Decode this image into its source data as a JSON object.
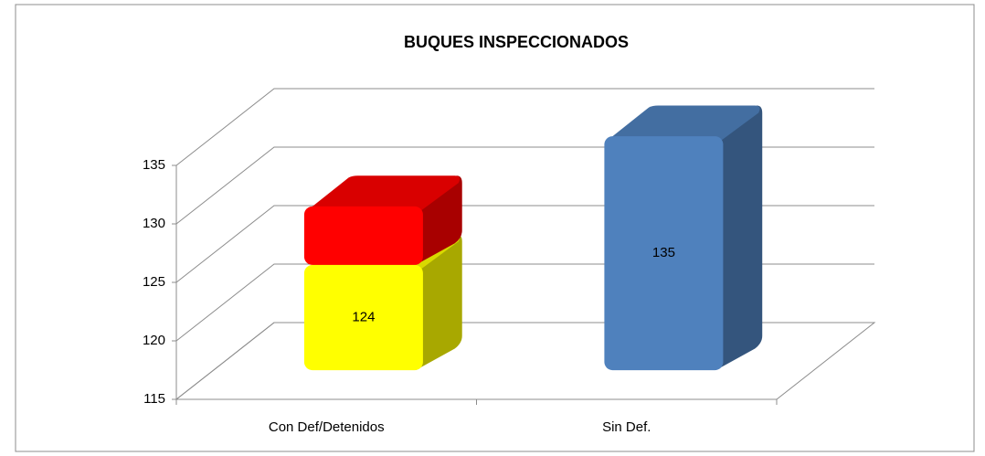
{
  "chart_data": {
    "type": "bar3d_stacked",
    "title": "BUQUES INSPECCIONADOS",
    "categories": [
      "Con Def/Detenidos",
      "Sin Def."
    ],
    "series": [
      {
        "color": "#ffff00",
        "values": [
          124,
          null
        ]
      },
      {
        "color": "#ff0000",
        "values": [
          5,
          null
        ]
      },
      {
        "color": "#4f81bd",
        "values": [
          null,
          135
        ]
      }
    ],
    "value_labels_shown": [
      true,
      false,
      true
    ],
    "ylim": [
      115,
      135
    ],
    "yticks": [
      115,
      120,
      125,
      130,
      135
    ],
    "grid": true
  }
}
